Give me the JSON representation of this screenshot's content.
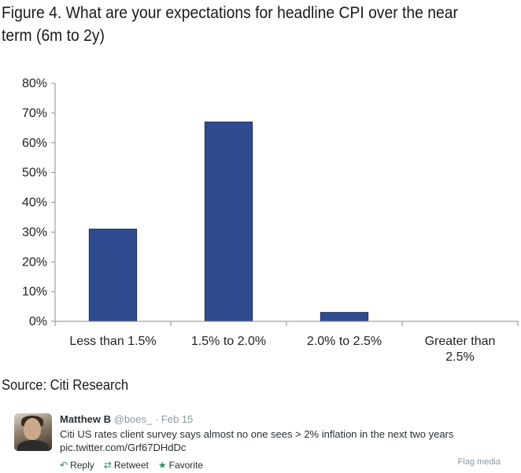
{
  "figure": {
    "title": "Figure 4. What are your expectations for headline CPI over the near term (6m to 2y)"
  },
  "chart_data": {
    "type": "bar",
    "categories": [
      [
        "Less than 1.5%"
      ],
      [
        "1.5% to 2.0%"
      ],
      [
        "2.0% to 2.5%"
      ],
      [
        "Greater than",
        "2.5%"
      ]
    ],
    "values": [
      31,
      67,
      3,
      0
    ],
    "y_ticks": [
      "0%",
      "10%",
      "20%",
      "30%",
      "40%",
      "50%",
      "60%",
      "70%",
      "80%"
    ],
    "ylim": [
      0,
      80
    ],
    "grid": false,
    "bar_color": "#2f4b8f",
    "title": "",
    "xlabel": "",
    "ylabel": ""
  },
  "source": "Source: Citi Research",
  "tweet": {
    "name": "Matthew B",
    "handle": "@boes_",
    "date": "· Feb 15",
    "text": "Citi US rates client survey says almost no one sees > 2% inflation in the next two years",
    "link": "pic.twitter.com/Grf67DHdDc",
    "actions": {
      "reply": "Reply",
      "reply_icon": "reply-arrow-icon",
      "retweet": "Retweet",
      "retweet_icon": "retweet-icon",
      "favorite": "Favorite",
      "favorite_icon": "star-icon"
    },
    "flag": "Flag media",
    "accent_color": "#2f8a5a"
  }
}
